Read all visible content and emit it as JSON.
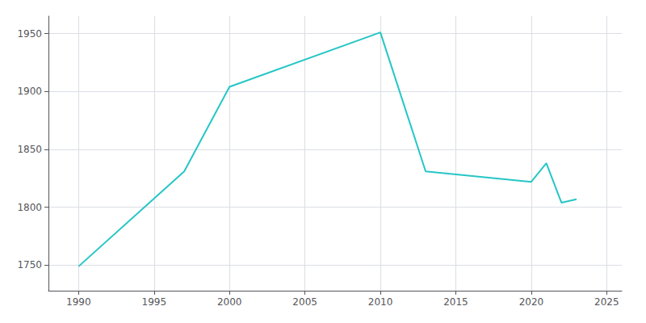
{
  "chart_data": {
    "type": "line",
    "x": [
      1990,
      1997,
      2000,
      2010,
      2013,
      2020,
      2021,
      2022,
      2023
    ],
    "values": [
      1749,
      1831,
      1904,
      1951,
      1831,
      1822,
      1838,
      1804,
      1807
    ],
    "color": "#26C6C6",
    "xlim": [
      1988,
      2026
    ],
    "ylim": [
      1728,
      1965
    ],
    "xticks": [
      1990,
      1995,
      2000,
      2005,
      2010,
      2015,
      2020,
      2025
    ],
    "yticks": [
      1750,
      1800,
      1850,
      1900,
      1950
    ],
    "grid": true
  }
}
